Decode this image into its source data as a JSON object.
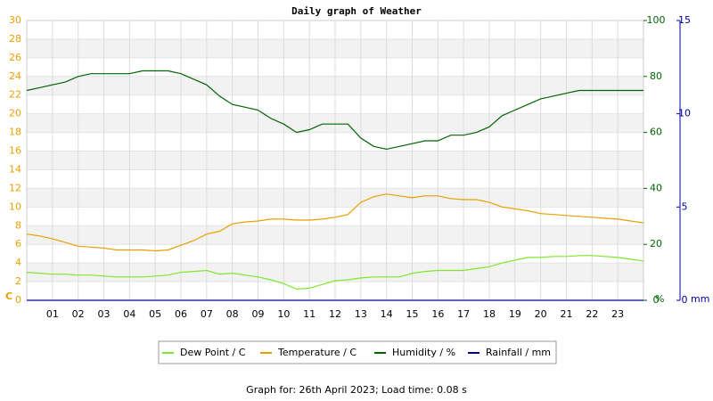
{
  "chart_data": {
    "type": "line",
    "title": "Daily graph of Weather",
    "footer": "Graph for: 26th April 2023; Load time: 0.08 s",
    "ylabel": "C",
    "y2label": "%",
    "y3label": "mm",
    "xlim": [
      0,
      24
    ],
    "xticks": [
      {
        "value": 1,
        "label": "01"
      },
      {
        "value": 2,
        "label": "02"
      },
      {
        "value": 3,
        "label": "03"
      },
      {
        "value": 4,
        "label": "04"
      },
      {
        "value": 5,
        "label": "05"
      },
      {
        "value": 6,
        "label": "06"
      },
      {
        "value": 7,
        "label": "07"
      },
      {
        "value": 8,
        "label": "08"
      },
      {
        "value": 9,
        "label": "09"
      },
      {
        "value": 10,
        "label": "10"
      },
      {
        "value": 11,
        "label": "11"
      },
      {
        "value": 12,
        "label": "12"
      },
      {
        "value": 13,
        "label": "13"
      },
      {
        "value": 14,
        "label": "14"
      },
      {
        "value": 15,
        "label": "15"
      },
      {
        "value": 16,
        "label": "16"
      },
      {
        "value": 17,
        "label": "17"
      },
      {
        "value": 18,
        "label": "18"
      },
      {
        "value": 19,
        "label": "19"
      },
      {
        "value": 20,
        "label": "20"
      },
      {
        "value": 21,
        "label": "21"
      },
      {
        "value": 22,
        "label": "22"
      },
      {
        "value": 23,
        "label": "23"
      }
    ],
    "ylim": [
      0,
      30
    ],
    "yticks": [
      0,
      2,
      4,
      6,
      8,
      10,
      12,
      14,
      16,
      18,
      20,
      22,
      24,
      26,
      28,
      30
    ],
    "ycolor": "#e8a000",
    "y2lim": [
      0,
      100
    ],
    "y2ticks": [
      0,
      20,
      40,
      60,
      80,
      100
    ],
    "y2color": "#006400",
    "y3lim": [
      0,
      15
    ],
    "y3ticks": [
      0,
      5,
      10,
      15
    ],
    "y3color": "#0000a0",
    "grid": true,
    "x": [
      0,
      0.5,
      1,
      1.5,
      2,
      2.5,
      3,
      3.5,
      4,
      4.5,
      5,
      5.5,
      6,
      6.5,
      7,
      7.5,
      8,
      8.5,
      9,
      9.5,
      10,
      10.5,
      11,
      11.5,
      12,
      12.5,
      13,
      13.5,
      14,
      14.5,
      15,
      15.5,
      16,
      16.5,
      17,
      17.5,
      18,
      18.5,
      19,
      19.5,
      20,
      20.5,
      21,
      21.5,
      22,
      22.5,
      23,
      23.5,
      24
    ],
    "series": [
      {
        "name": "Dew Point / C",
        "color": "#7ee82a",
        "axis": "y",
        "values": [
          3,
          2.9,
          2.8,
          2.8,
          2.7,
          2.7,
          2.6,
          2.5,
          2.5,
          2.5,
          2.6,
          2.7,
          3,
          3.1,
          3.2,
          2.8,
          2.9,
          2.7,
          2.5,
          2.2,
          1.8,
          1.2,
          1.3,
          1.7,
          2.1,
          2.2,
          2.4,
          2.5,
          2.5,
          2.5,
          2.9,
          3.1,
          3.2,
          3.2,
          3.2,
          3.4,
          3.6,
          4,
          4.3,
          4.6,
          4.6,
          4.7,
          4.7,
          4.8,
          4.8,
          4.7,
          4.6,
          4.4,
          4.2
        ]
      },
      {
        "name": "Temperature / C",
        "color": "#e8a000",
        "axis": "y",
        "values": [
          7.1,
          6.9,
          6.6,
          6.2,
          5.8,
          5.7,
          5.6,
          5.4,
          5.4,
          5.4,
          5.3,
          5.4,
          5.9,
          6.4,
          7.1,
          7.4,
          8.2,
          8.4,
          8.5,
          8.7,
          8.7,
          8.6,
          8.6,
          8.7,
          8.9,
          9.2,
          10.5,
          11.1,
          11.4,
          11.2,
          11,
          11.2,
          11.2,
          10.9,
          10.8,
          10.8,
          10.5,
          10,
          9.8,
          9.6,
          9.3,
          9.2,
          9.1,
          9,
          8.9,
          8.8,
          8.7,
          8.5,
          8.3
        ]
      },
      {
        "name": "Humidity / %",
        "color": "#006400",
        "axis": "y2",
        "values": [
          75,
          76,
          77,
          78,
          80,
          81,
          81,
          81,
          81,
          82,
          82,
          82,
          81,
          79,
          77,
          73,
          70,
          69,
          68,
          65,
          63,
          60,
          61,
          63,
          63,
          63,
          58,
          55,
          54,
          55,
          56,
          57,
          57,
          59,
          59,
          60,
          62,
          66,
          68,
          70,
          72,
          73,
          74,
          75,
          75,
          75,
          75,
          75,
          75
        ]
      },
      {
        "name": "Rainfall / mm",
        "color": "#0000a0",
        "axis": "y3",
        "values": [
          0,
          0,
          0,
          0,
          0,
          0,
          0,
          0,
          0,
          0,
          0,
          0,
          0,
          0,
          0,
          0,
          0,
          0,
          0,
          0,
          0,
          0,
          0,
          0,
          0,
          0,
          0,
          0,
          0,
          0,
          0,
          0,
          0,
          0,
          0,
          0,
          0,
          0,
          0,
          0,
          0,
          0,
          0,
          0,
          0,
          0,
          0,
          0,
          0
        ]
      }
    ]
  }
}
